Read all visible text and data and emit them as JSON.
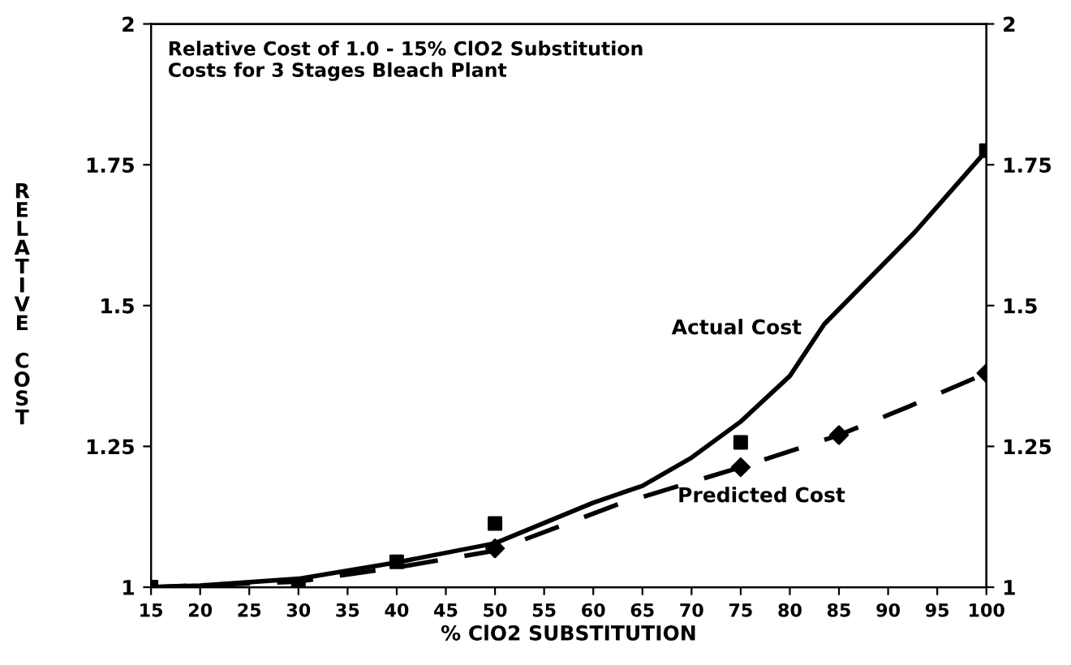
{
  "chart_data": {
    "type": "line",
    "title": "Relative Cost of 1.0 - 15% ClO2 Substitution\nCosts for 3 Stages Bleach Plant",
    "xlabel": "% ClO2 SUBSTITUTION",
    "ylabel": "RELATIVE COST",
    "xlim": [
      15,
      100
    ],
    "xticks": [
      15,
      20,
      25,
      30,
      35,
      40,
      45,
      50,
      55,
      60,
      65,
      70,
      75,
      80,
      85,
      90,
      95,
      100
    ],
    "ylim": [
      1,
      2
    ],
    "yticks": [
      1,
      1.25,
      1.5,
      1.75,
      2
    ],
    "y2lim": [
      1,
      2
    ],
    "y2ticks": [
      1,
      1.25,
      1.5,
      1.75,
      2
    ],
    "grid": false,
    "legend": false,
    "series": [
      {
        "name": "Actual Cost",
        "line_style": "solid",
        "marker": "none",
        "color": "#000000",
        "x": [
          15,
          20,
          30,
          40,
          50,
          60,
          65,
          70,
          75,
          80,
          83.5,
          92.7,
          100
        ],
        "values": [
          1.0,
          1.003,
          1.015,
          1.044,
          1.078,
          1.15,
          1.18,
          1.23,
          1.294,
          1.375,
          1.467,
          1.63,
          1.775
        ]
      },
      {
        "name": "Predicted Cost",
        "line_style": "dashed",
        "marker": "none",
        "color": "#000000",
        "x": [
          15,
          30,
          40,
          50,
          62.5,
          75,
          85,
          92,
          100
        ],
        "values": [
          1.0,
          1.01,
          1.035,
          1.065,
          1.147,
          1.213,
          1.27,
          1.32,
          1.38
        ]
      },
      {
        "type": "scatter",
        "marker": "square",
        "color": "#000000",
        "x": [
          15,
          30,
          40,
          50,
          75,
          100
        ],
        "values": [
          1.0,
          1.0,
          1.045,
          1.113,
          1.257,
          1.775
        ]
      },
      {
        "type": "scatter",
        "marker": "diamond",
        "color": "#000000",
        "x": [
          50,
          75,
          85,
          100
        ],
        "values": [
          1.069,
          1.213,
          1.27,
          1.38
        ]
      }
    ]
  }
}
